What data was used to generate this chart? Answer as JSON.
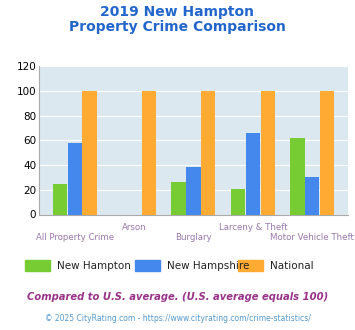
{
  "title_line1": "2019 New Hampton",
  "title_line2": "Property Crime Comparison",
  "categories": [
    "All Property Crime",
    "Arson",
    "Burglary",
    "Larceny & Theft",
    "Motor Vehicle Theft"
  ],
  "new_hampton": [
    25,
    0,
    26,
    21,
    62
  ],
  "new_hampshire": [
    58,
    0,
    38,
    66,
    30
  ],
  "national": [
    100,
    100,
    100,
    100,
    100
  ],
  "bar_colors": {
    "new_hampton": "#77cc33",
    "new_hampshire": "#4488ee",
    "national": "#ffaa33"
  },
  "ylim": [
    0,
    120
  ],
  "yticks": [
    0,
    20,
    40,
    60,
    80,
    100,
    120
  ],
  "legend_labels": [
    "New Hampton",
    "New Hampshire",
    "National"
  ],
  "footnote1": "Compared to U.S. average. (U.S. average equals 100)",
  "footnote2": "© 2025 CityRating.com - https://www.cityrating.com/crime-statistics/",
  "title_color": "#2266cc",
  "footnote1_color": "#993388",
  "footnote2_color": "#5599cc",
  "xlabel_color": "#9977aa",
  "plot_bg_color": "#dce8f0"
}
